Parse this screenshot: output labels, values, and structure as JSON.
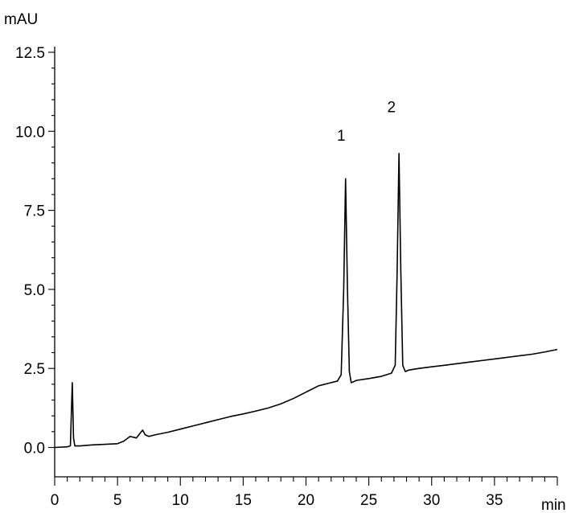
{
  "chart_data": {
    "type": "line",
    "title": "",
    "xlabel": "min",
    "ylabel": "mAU",
    "xlim": [
      0,
      40
    ],
    "ylim": [
      -0.5,
      12.5
    ],
    "x_ticks": [
      0,
      5,
      10,
      15,
      20,
      25,
      30,
      35
    ],
    "x_tick_labels": [
      "0",
      "5",
      "10",
      "15",
      "20",
      "25",
      "30",
      "35"
    ],
    "y_ticks": [
      0.0,
      2.5,
      5.0,
      7.5,
      10.0,
      12.5
    ],
    "y_tick_labels": [
      "0.0",
      "2.5",
      "5.0",
      "7.5",
      "10.0",
      "12.5"
    ],
    "grid": false,
    "legend": "none",
    "line_color": "#000000",
    "series": [
      {
        "x": [
          0,
          1,
          1.25,
          1.4,
          1.5,
          1.6,
          1.75,
          2,
          3,
          4,
          5,
          5.5,
          6,
          6.5,
          6.8,
          7,
          7.2,
          7.5,
          8,
          9,
          10,
          11,
          12,
          13,
          14,
          15,
          16,
          17,
          18,
          19,
          20,
          21,
          22,
          22.5,
          22.8,
          23.0,
          23.15,
          23.3,
          23.45,
          23.6,
          23.8,
          24,
          25,
          26,
          26.8,
          27.1,
          27.25,
          27.4,
          27.55,
          27.7,
          27.9,
          28.2,
          29,
          30,
          31,
          32,
          33,
          34,
          35,
          36,
          37,
          38,
          39,
          40
        ],
        "y": [
          0.0,
          0.02,
          0.05,
          2.05,
          0.3,
          0.05,
          0.05,
          0.05,
          0.08,
          0.1,
          0.12,
          0.2,
          0.35,
          0.3,
          0.45,
          0.55,
          0.4,
          0.35,
          0.4,
          0.48,
          0.58,
          0.68,
          0.78,
          0.88,
          0.98,
          1.06,
          1.15,
          1.25,
          1.38,
          1.55,
          1.75,
          1.95,
          2.05,
          2.1,
          2.3,
          5.0,
          8.5,
          5.0,
          2.4,
          2.05,
          2.08,
          2.12,
          2.18,
          2.25,
          2.35,
          2.6,
          5.5,
          9.3,
          5.5,
          2.6,
          2.4,
          2.45,
          2.5,
          2.55,
          2.6,
          2.65,
          2.7,
          2.75,
          2.8,
          2.85,
          2.9,
          2.95,
          3.02,
          3.1
        ]
      }
    ],
    "annotations": [
      {
        "text": "1",
        "x": 22.8,
        "y": 9.7
      },
      {
        "text": "2",
        "x": 26.8,
        "y": 10.6
      }
    ]
  }
}
